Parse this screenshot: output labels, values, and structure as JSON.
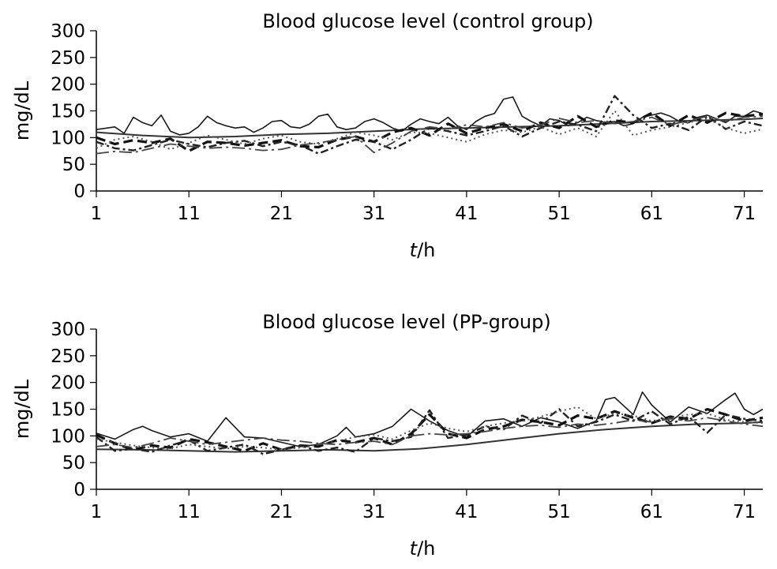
{
  "chart_data": [
    {
      "type": "line",
      "title": "Blood glucose level (control group)",
      "ylabel": "mg/dL",
      "xlabel_italic": "t",
      "xlabel_rest": "/h",
      "xlim": [
        1,
        73
      ],
      "ylim": [
        0,
        300
      ],
      "xticks": [
        1,
        11,
        21,
        31,
        41,
        51,
        61,
        71
      ],
      "yticks": [
        0,
        50,
        100,
        150,
        200,
        250,
        300
      ],
      "grid": false,
      "series": [
        {
          "style": "thin-solid",
          "color": "#1a1a1a",
          "x": [
            1,
            3,
            4,
            5,
            6,
            7,
            8,
            9,
            10,
            11,
            12,
            13,
            14,
            15,
            16,
            17,
            18,
            19,
            20,
            21,
            22,
            23,
            24,
            25,
            26,
            27,
            28,
            29,
            30,
            31,
            32,
            33,
            34,
            35,
            36,
            37,
            38,
            39,
            40,
            41,
            42,
            43,
            44,
            45,
            46,
            47,
            48,
            49,
            50,
            51,
            52,
            53,
            54,
            55,
            56,
            57,
            58,
            59,
            60,
            61,
            62,
            63,
            64,
            65,
            66,
            67,
            68,
            69,
            70,
            71,
            72,
            73
          ],
          "values": [
            115,
            120,
            108,
            138,
            128,
            122,
            142,
            112,
            105,
            108,
            120,
            140,
            128,
            122,
            118,
            120,
            110,
            118,
            130,
            132,
            120,
            118,
            125,
            140,
            144,
            120,
            115,
            118,
            130,
            135,
            128,
            118,
            112,
            125,
            135,
            130,
            126,
            138,
            122,
            115,
            130,
            140,
            145,
            172,
            176,
            140,
            130,
            122,
            135,
            132,
            122,
            128,
            138,
            132,
            128,
            130,
            122,
            126,
            138,
            142,
            146,
            140,
            130,
            128,
            138,
            142,
            135,
            128,
            140,
            140,
            150,
            145
          ]
        },
        {
          "style": "medium-solid",
          "color": "#333333",
          "x": [
            1,
            6,
            11,
            16,
            21,
            26,
            31,
            36,
            41,
            46,
            51,
            56,
            61,
            66,
            71,
            73
          ],
          "values": [
            110,
            104,
            100,
            102,
            106,
            108,
            112,
            116,
            118,
            120,
            122,
            126,
            130,
            132,
            134,
            136
          ]
        },
        {
          "style": "dash",
          "color": "#111111",
          "x": [
            1,
            3,
            5,
            7,
            9,
            11,
            13,
            15,
            17,
            19,
            21,
            23,
            25,
            27,
            29,
            31,
            33,
            35,
            37,
            39,
            41,
            43,
            45,
            47,
            49,
            51,
            53,
            55,
            57,
            59,
            61,
            63,
            65,
            67,
            69,
            71,
            73
          ],
          "values": [
            100,
            88,
            95,
            90,
            98,
            75,
            92,
            90,
            85,
            90,
            95,
            84,
            82,
            96,
            102,
            92,
            110,
            118,
            104,
            126,
            108,
            118,
            125,
            112,
            128,
            118,
            140,
            120,
            132,
            128,
            146,
            122,
            142,
            128,
            146,
            140,
            144
          ]
        },
        {
          "style": "dash-dot",
          "color": "#222222",
          "x": [
            1,
            3,
            5,
            7,
            9,
            11,
            13,
            15,
            17,
            19,
            21,
            23,
            25,
            27,
            29,
            31,
            33,
            35,
            37,
            39,
            41,
            43,
            45,
            47,
            49,
            51,
            53,
            55,
            57,
            59,
            61,
            63,
            65,
            67,
            69,
            71,
            73
          ],
          "values": [
            92,
            80,
            76,
            86,
            96,
            88,
            82,
            90,
            94,
            84,
            92,
            86,
            70,
            84,
            96,
            92,
            78,
            96,
            118,
            112,
            104,
            112,
            122,
            102,
            118,
            130,
            124,
            112,
            178,
            142,
            118,
            126,
            114,
            140,
            116,
            130,
            122
          ]
        },
        {
          "style": "dotted",
          "color": "#555555",
          "x": [
            1,
            3,
            5,
            7,
            9,
            11,
            13,
            15,
            17,
            19,
            21,
            23,
            25,
            27,
            29,
            31,
            33,
            35,
            37,
            39,
            41,
            43,
            45,
            47,
            49,
            51,
            53,
            55,
            57,
            59,
            61,
            63,
            65,
            67,
            69,
            71,
            73
          ],
          "values": [
            80,
            96,
            102,
            92,
            78,
            90,
            104,
            96,
            88,
            98,
            104,
            92,
            88,
            98,
            110,
            104,
            96,
            110,
            108,
            100,
            92,
            106,
            114,
            110,
            120,
            106,
            118,
            102,
            150,
            104,
            114,
            120,
            128,
            136,
            118,
            108,
            116
          ]
        },
        {
          "style": "long-dash-dot",
          "color": "#444444",
          "x": [
            1,
            3,
            5,
            7,
            9,
            11,
            13,
            15,
            17,
            19,
            21,
            23,
            25,
            27,
            29,
            31,
            33,
            35,
            37,
            39,
            41,
            43,
            45,
            47,
            49,
            51,
            53,
            55,
            57,
            59,
            61,
            63,
            65,
            67,
            69,
            71,
            73
          ],
          "values": [
            70,
            74,
            72,
            80,
            88,
            84,
            80,
            82,
            80,
            76,
            78,
            86,
            90,
            96,
            102,
            72,
            90,
            112,
            120,
            116,
            124,
            120,
            128,
            118,
            124,
            136,
            128,
            132,
            126,
            130,
            138,
            124,
            132,
            140,
            130,
            138,
            140
          ]
        }
      ]
    },
    {
      "type": "line",
      "title": "Blood glucose level (PP-group)",
      "ylabel": "mg/dL",
      "xlabel_italic": "t",
      "xlabel_rest": "/h",
      "xlim": [
        1,
        73
      ],
      "ylim": [
        0,
        300
      ],
      "xticks": [
        1,
        11,
        21,
        31,
        41,
        51,
        61,
        71
      ],
      "yticks": [
        0,
        50,
        100,
        150,
        200,
        250,
        300
      ],
      "grid": false,
      "series": [
        {
          "style": "thin-solid",
          "color": "#1a1a1a",
          "x": [
            1,
            3,
            5,
            6,
            7,
            9,
            11,
            13,
            15,
            17,
            19,
            21,
            23,
            25,
            27,
            28,
            29,
            31,
            33,
            35,
            37,
            39,
            41,
            43,
            45,
            47,
            49,
            51,
            53,
            55,
            56,
            57,
            59,
            60,
            61,
            63,
            65,
            67,
            69,
            70,
            71,
            72,
            73
          ],
          "values": [
            105,
            94,
            112,
            118,
            110,
            98,
            104,
            90,
            134,
            98,
            96,
            88,
            80,
            84,
            100,
            116,
            98,
            104,
            118,
            150,
            128,
            110,
            98,
            128,
            132,
            118,
            134,
            126,
            114,
            128,
            168,
            172,
            140,
            182,
            158,
            126,
            154,
            142,
            168,
            180,
            150,
            140,
            150
          ]
        },
        {
          "style": "medium-solid",
          "color": "#333333",
          "x": [
            1,
            6,
            11,
            16,
            21,
            26,
            31,
            36,
            41,
            46,
            51,
            56,
            61,
            66,
            71,
            73
          ],
          "values": [
            75,
            74,
            72,
            70,
            72,
            74,
            72,
            76,
            84,
            94,
            104,
            112,
            118,
            122,
            124,
            126
          ]
        },
        {
          "style": "dash",
          "color": "#111111",
          "x": [
            1,
            3,
            5,
            7,
            9,
            11,
            13,
            15,
            17,
            19,
            21,
            23,
            25,
            27,
            29,
            31,
            33,
            35,
            37,
            39,
            41,
            43,
            45,
            47,
            49,
            51,
            53,
            55,
            57,
            59,
            61,
            63,
            65,
            67,
            69,
            71,
            73
          ],
          "values": [
            102,
            86,
            74,
            82,
            78,
            94,
            88,
            80,
            72,
            86,
            74,
            82,
            80,
            92,
            88,
            96,
            84,
            104,
            140,
            104,
            96,
            112,
            118,
            130,
            126,
            120,
            138,
            132,
            146,
            134,
            124,
            136,
            132,
            150,
            140,
            128,
            134
          ]
        },
        {
          "style": "dash-dot",
          "color": "#222222",
          "x": [
            1,
            3,
            5,
            7,
            9,
            11,
            13,
            15,
            17,
            19,
            21,
            23,
            25,
            27,
            29,
            31,
            33,
            35,
            37,
            39,
            41,
            43,
            45,
            47,
            49,
            51,
            53,
            55,
            57,
            59,
            61,
            63,
            65,
            67,
            69,
            71,
            73
          ],
          "values": [
            98,
            72,
            76,
            70,
            82,
            92,
            72,
            78,
            84,
            66,
            74,
            82,
            72,
            78,
            70,
            96,
            90,
            98,
            148,
            96,
            102,
            118,
            112,
            138,
            124,
            150,
            118,
            126,
            140,
            128,
            146,
            122,
            136,
            106,
            140,
            132,
            128
          ]
        },
        {
          "style": "dotted",
          "color": "#555555",
          "x": [
            1,
            3,
            5,
            7,
            9,
            11,
            13,
            15,
            17,
            19,
            21,
            23,
            25,
            27,
            29,
            31,
            33,
            35,
            37,
            39,
            41,
            43,
            45,
            47,
            49,
            51,
            53,
            55,
            57,
            59,
            61,
            63,
            65,
            67,
            69,
            71,
            73
          ],
          "values": [
            94,
            88,
            82,
            78,
            76,
            84,
            80,
            76,
            80,
            78,
            74,
            78,
            84,
            90,
            98,
            102,
            94,
            110,
            124,
            114,
            108,
            118,
            124,
            128,
            136,
            146,
            154,
            132,
            142,
            138,
            128,
            134,
            140,
            142,
            130,
            126,
            124
          ]
        },
        {
          "style": "long-dash-dot",
          "color": "#444444",
          "x": [
            1,
            3,
            5,
            7,
            9,
            11,
            13,
            15,
            17,
            19,
            21,
            23,
            25,
            27,
            29,
            31,
            33,
            35,
            37,
            39,
            41,
            43,
            45,
            47,
            49,
            51,
            53,
            55,
            57,
            59,
            61,
            63,
            65,
            67,
            69,
            71,
            73
          ],
          "values": [
            80,
            84,
            78,
            86,
            96,
            90,
            84,
            88,
            92,
            96,
            92,
            90,
            86,
            84,
            88,
            90,
            84,
            100,
            104,
            102,
            104,
            108,
            114,
            118,
            120,
            116,
            122,
            120,
            124,
            130,
            126,
            132,
            128,
            134,
            128,
            122,
            118
          ]
        }
      ]
    }
  ]
}
